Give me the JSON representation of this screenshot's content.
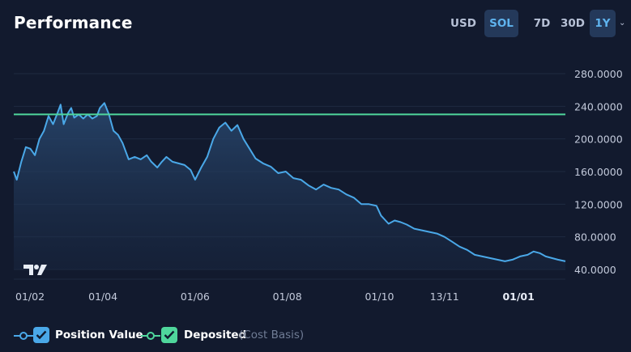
{
  "header": {
    "title": "Performance"
  },
  "currency_toggle": [
    {
      "label": "USD",
      "active": false
    },
    {
      "label": "SOL",
      "active": true
    }
  ],
  "range_toggle": [
    {
      "label": "7D",
      "active": false
    },
    {
      "label": "30D",
      "active": false
    },
    {
      "label": "1Y",
      "active": true
    }
  ],
  "legend": {
    "position_value": {
      "label": "Position Value",
      "checked": true,
      "color": "#4aa8e8"
    },
    "deposited": {
      "label": "Deposited",
      "sub_label": "(Cost Basis)",
      "checked": true,
      "color": "#4fd69c"
    }
  },
  "chart_data": {
    "type": "area",
    "y_ticks": [
      "40.0000",
      "80.0000",
      "120.0000",
      "160.0000",
      "200.0000",
      "240.0000",
      "280.0000"
    ],
    "ylim": [
      40,
      280
    ],
    "x_ticks": [
      {
        "label": "01/02",
        "x": 1
      },
      {
        "label": "01/04",
        "x": 59
      },
      {
        "label": "01/06",
        "x": 120
      },
      {
        "label": "01/08",
        "x": 181
      },
      {
        "label": "01/10",
        "x": 242
      },
      {
        "label": "13/11",
        "x": 285
      },
      {
        "label": "01/01",
        "x": 334,
        "bold": true
      }
    ],
    "xlim": [
      0,
      365
    ],
    "grid": true,
    "legend_position": "bottom-left",
    "series": [
      {
        "name": "Position Value",
        "color": "#4aa8e8",
        "fill": true,
        "points": [
          [
            0,
            160
          ],
          [
            2,
            150
          ],
          [
            5,
            172
          ],
          [
            8,
            190
          ],
          [
            11,
            188
          ],
          [
            14,
            180
          ],
          [
            17,
            200
          ],
          [
            20,
            210
          ],
          [
            23,
            228
          ],
          [
            26,
            218
          ],
          [
            29,
            232
          ],
          [
            31,
            242
          ],
          [
            33,
            218
          ],
          [
            36,
            232
          ],
          [
            38,
            238
          ],
          [
            40,
            226
          ],
          [
            43,
            230
          ],
          [
            46,
            225
          ],
          [
            49,
            230
          ],
          [
            52,
            225
          ],
          [
            55,
            228
          ],
          [
            57,
            238
          ],
          [
            60,
            244
          ],
          [
            63,
            230
          ],
          [
            66,
            210
          ],
          [
            69,
            205
          ],
          [
            72,
            195
          ],
          [
            76,
            175
          ],
          [
            80,
            178
          ],
          [
            84,
            175
          ],
          [
            88,
            180
          ],
          [
            91,
            172
          ],
          [
            95,
            165
          ],
          [
            98,
            172
          ],
          [
            101,
            178
          ],
          [
            105,
            172
          ],
          [
            109,
            170
          ],
          [
            113,
            168
          ],
          [
            117,
            162
          ],
          [
            120,
            150
          ],
          [
            124,
            165
          ],
          [
            128,
            178
          ],
          [
            132,
            200
          ],
          [
            136,
            214
          ],
          [
            140,
            220
          ],
          [
            144,
            210
          ],
          [
            148,
            217
          ],
          [
            152,
            200
          ],
          [
            156,
            188
          ],
          [
            160,
            176
          ],
          [
            165,
            170
          ],
          [
            170,
            166
          ],
          [
            175,
            158
          ],
          [
            180,
            160
          ],
          [
            185,
            152
          ],
          [
            190,
            150
          ],
          [
            195,
            143
          ],
          [
            200,
            138
          ],
          [
            205,
            144
          ],
          [
            210,
            140
          ],
          [
            215,
            138
          ],
          [
            220,
            132
          ],
          [
            225,
            128
          ],
          [
            230,
            120
          ],
          [
            235,
            120
          ],
          [
            240,
            118
          ],
          [
            243,
            106
          ],
          [
            246,
            100
          ],
          [
            248,
            96
          ],
          [
            252,
            100
          ],
          [
            256,
            98
          ],
          [
            260,
            95
          ],
          [
            265,
            90
          ],
          [
            270,
            88
          ],
          [
            275,
            86
          ],
          [
            280,
            84
          ],
          [
            285,
            80
          ],
          [
            290,
            74
          ],
          [
            295,
            68
          ],
          [
            300,
            64
          ],
          [
            305,
            58
          ],
          [
            310,
            56
          ],
          [
            315,
            54
          ],
          [
            320,
            52
          ],
          [
            325,
            50
          ],
          [
            330,
            52
          ],
          [
            335,
            56
          ],
          [
            340,
            58
          ],
          [
            344,
            62
          ],
          [
            348,
            60
          ],
          [
            352,
            56
          ],
          [
            356,
            54
          ],
          [
            360,
            52
          ],
          [
            365,
            50
          ]
        ]
      },
      {
        "name": "Deposited",
        "color": "#4fd69c",
        "fill": false,
        "points": [
          [
            0,
            230
          ],
          [
            365,
            230
          ]
        ]
      }
    ]
  }
}
